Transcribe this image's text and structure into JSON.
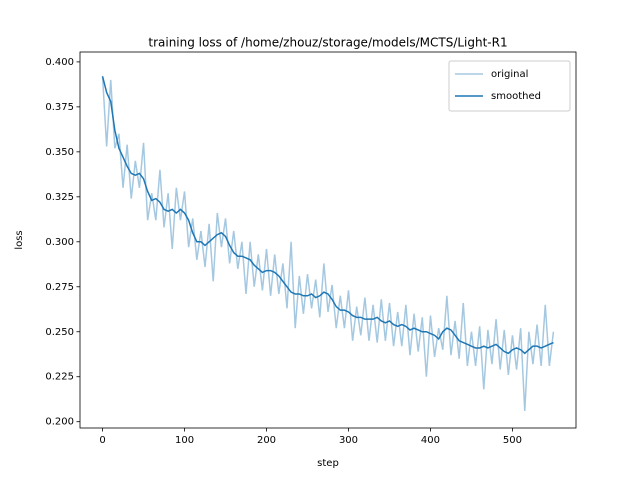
{
  "chart_data": {
    "type": "line",
    "title": "training loss of /home/zhouz/storage/models/MCTS/Light-R1",
    "x_label": "step",
    "y_label": "loss",
    "x": [
      0,
      5,
      10,
      15,
      20,
      25,
      30,
      35,
      40,
      45,
      50,
      55,
      60,
      65,
      70,
      75,
      80,
      85,
      90,
      95,
      100,
      105,
      110,
      115,
      120,
      125,
      130,
      135,
      140,
      145,
      150,
      155,
      160,
      165,
      170,
      175,
      180,
      185,
      190,
      195,
      200,
      205,
      210,
      215,
      220,
      225,
      230,
      235,
      240,
      245,
      250,
      255,
      260,
      265,
      270,
      275,
      280,
      285,
      290,
      295,
      300,
      305,
      310,
      315,
      320,
      325,
      330,
      335,
      340,
      345,
      350,
      355,
      360,
      365,
      370,
      375,
      380,
      385,
      390,
      395,
      400,
      405,
      410,
      415,
      420,
      425,
      430,
      435,
      440,
      445,
      450,
      455,
      460,
      465,
      470,
      475,
      480,
      485,
      490,
      495,
      500,
      505,
      510,
      515,
      520,
      525,
      530,
      535,
      540,
      545,
      550
    ],
    "series": [
      {
        "name": "original",
        "color": "#a5c8e1",
        "values": [
          0.392,
          0.353,
          0.39,
          0.352,
          0.36,
          0.33,
          0.354,
          0.324,
          0.345,
          0.33,
          0.355,
          0.312,
          0.327,
          0.312,
          0.34,
          0.308,
          0.327,
          0.296,
          0.33,
          0.312,
          0.328,
          0.297,
          0.313,
          0.29,
          0.306,
          0.286,
          0.31,
          0.278,
          0.316,
          0.297,
          0.313,
          0.288,
          0.306,
          0.285,
          0.3,
          0.271,
          0.3,
          0.275,
          0.293,
          0.273,
          0.296,
          0.27,
          0.293,
          0.271,
          0.288,
          0.263,
          0.3,
          0.252,
          0.281,
          0.26,
          0.282,
          0.263,
          0.279,
          0.258,
          0.288,
          0.261,
          0.276,
          0.252,
          0.27,
          0.252,
          0.273,
          0.245,
          0.264,
          0.248,
          0.269,
          0.245,
          0.265,
          0.244,
          0.268,
          0.245,
          0.266,
          0.242,
          0.261,
          0.242,
          0.265,
          0.237,
          0.26,
          0.239,
          0.258,
          0.225,
          0.259,
          0.236,
          0.252,
          0.24,
          0.27,
          0.237,
          0.256,
          0.235,
          0.266,
          0.231,
          0.25,
          0.231,
          0.253,
          0.218,
          0.251,
          0.232,
          0.257,
          0.229,
          0.251,
          0.226,
          0.248,
          0.229,
          0.252,
          0.206,
          0.25,
          0.232,
          0.254,
          0.231,
          0.265,
          0.231,
          0.25
        ]
      },
      {
        "name": "smoothed",
        "color": "#1f77b4",
        "values": [
          0.392,
          0.383,
          0.378,
          0.362,
          0.352,
          0.347,
          0.342,
          0.338,
          0.337,
          0.338,
          0.335,
          0.328,
          0.323,
          0.324,
          0.322,
          0.318,
          0.317,
          0.318,
          0.316,
          0.318,
          0.316,
          0.312,
          0.305,
          0.3,
          0.3,
          0.298,
          0.3,
          0.302,
          0.304,
          0.305,
          0.303,
          0.298,
          0.294,
          0.292,
          0.292,
          0.291,
          0.29,
          0.287,
          0.285,
          0.283,
          0.284,
          0.284,
          0.283,
          0.281,
          0.278,
          0.275,
          0.272,
          0.271,
          0.271,
          0.27,
          0.27,
          0.271,
          0.269,
          0.27,
          0.272,
          0.271,
          0.268,
          0.264,
          0.262,
          0.262,
          0.261,
          0.259,
          0.258,
          0.258,
          0.257,
          0.257,
          0.257,
          0.258,
          0.256,
          0.255,
          0.256,
          0.254,
          0.253,
          0.254,
          0.253,
          0.251,
          0.252,
          0.251,
          0.25,
          0.25,
          0.249,
          0.248,
          0.246,
          0.25,
          0.252,
          0.251,
          0.248,
          0.245,
          0.244,
          0.243,
          0.242,
          0.241,
          0.241,
          0.242,
          0.241,
          0.242,
          0.243,
          0.241,
          0.239,
          0.238,
          0.24,
          0.241,
          0.24,
          0.238,
          0.24,
          0.242,
          0.242,
          0.241,
          0.242,
          0.243,
          0.244
        ]
      }
    ],
    "xlim": [
      -27.5,
      577.5
    ],
    "xticks": [
      0,
      100,
      200,
      300,
      400,
      500
    ],
    "ylim": [
      0.1965,
      0.4055
    ],
    "yticks": [
      {
        "value": 0.2,
        "label": "0.200"
      },
      {
        "value": 0.225,
        "label": "0.225"
      },
      {
        "value": 0.25,
        "label": "0.250"
      },
      {
        "value": 0.275,
        "label": "0.275"
      },
      {
        "value": 0.3,
        "label": "0.300"
      },
      {
        "value": 0.325,
        "label": "0.325"
      },
      {
        "value": 0.35,
        "label": "0.350"
      },
      {
        "value": 0.375,
        "label": "0.375"
      },
      {
        "value": 0.4,
        "label": "0.400"
      }
    ],
    "legend": "upper right"
  }
}
